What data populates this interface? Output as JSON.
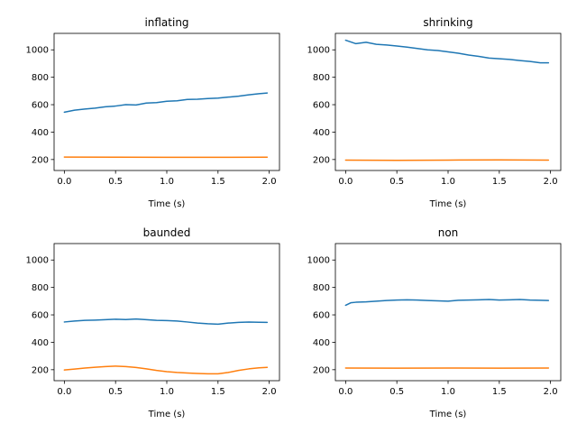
{
  "chart_data": [
    {
      "type": "line",
      "title": "inflating",
      "xlabel": "Time (s)",
      "ylabel": "",
      "xlim": [
        -0.1,
        2.1
      ],
      "ylim": [
        120,
        1120
      ],
      "xticks": [
        0.0,
        0.5,
        1.0,
        1.5,
        2.0
      ],
      "xtick_labels": [
        "0.0",
        "0.5",
        "1.0",
        "1.5",
        "2.0"
      ],
      "yticks": [
        200,
        400,
        600,
        800,
        1000
      ],
      "ytick_labels": [
        "200",
        "400",
        "600",
        "800",
        "1000"
      ],
      "grid": false,
      "series": [
        {
          "color": "#1f77b4",
          "x": [
            0.0,
            0.1,
            0.2,
            0.3,
            0.4,
            0.5,
            0.6,
            0.7,
            0.8,
            0.9,
            1.0,
            1.1,
            1.2,
            1.3,
            1.4,
            1.5,
            1.6,
            1.7,
            1.8,
            1.9,
            1.98
          ],
          "y": [
            545,
            560,
            568,
            575,
            585,
            590,
            600,
            598,
            612,
            615,
            625,
            628,
            638,
            640,
            645,
            648,
            655,
            662,
            672,
            680,
            685
          ]
        },
        {
          "color": "#ff7f0e",
          "x": [
            0.0,
            0.5,
            1.0,
            1.5,
            1.98
          ],
          "y": [
            218,
            217,
            216,
            216,
            217
          ]
        }
      ]
    },
    {
      "type": "line",
      "title": "shrinking",
      "xlabel": "Time (s)",
      "ylabel": "",
      "xlim": [
        -0.1,
        2.1
      ],
      "ylim": [
        120,
        1120
      ],
      "xticks": [
        0.0,
        0.5,
        1.0,
        1.5,
        2.0
      ],
      "xtick_labels": [
        "0.0",
        "0.5",
        "1.0",
        "1.5",
        "2.0"
      ],
      "yticks": [
        200,
        400,
        600,
        800,
        1000
      ],
      "ytick_labels": [
        "200",
        "400",
        "600",
        "800",
        "1000"
      ],
      "grid": false,
      "series": [
        {
          "color": "#1f77b4",
          "x": [
            0.0,
            0.1,
            0.2,
            0.3,
            0.4,
            0.5,
            0.6,
            0.7,
            0.8,
            0.9,
            1.0,
            1.1,
            1.2,
            1.3,
            1.4,
            1.5,
            1.6,
            1.7,
            1.8,
            1.9,
            1.98
          ],
          "y": [
            1070,
            1045,
            1055,
            1040,
            1035,
            1028,
            1020,
            1010,
            1000,
            995,
            985,
            975,
            962,
            952,
            940,
            935,
            930,
            922,
            915,
            905,
            905
          ]
        },
        {
          "color": "#ff7f0e",
          "x": [
            0.0,
            0.5,
            1.0,
            1.5,
            1.98
          ],
          "y": [
            196,
            194,
            196,
            197,
            196
          ]
        }
      ]
    },
    {
      "type": "line",
      "title": "baunded",
      "xlabel": "Time (s)",
      "ylabel": "",
      "xlim": [
        -0.1,
        2.1
      ],
      "ylim": [
        120,
        1120
      ],
      "xticks": [
        0.0,
        0.5,
        1.0,
        1.5,
        2.0
      ],
      "xtick_labels": [
        "0.0",
        "0.5",
        "1.0",
        "1.5",
        "2.0"
      ],
      "yticks": [
        200,
        400,
        600,
        800,
        1000
      ],
      "ytick_labels": [
        "200",
        "400",
        "600",
        "800",
        "1000"
      ],
      "grid": false,
      "series": [
        {
          "color": "#1f77b4",
          "x": [
            0.0,
            0.1,
            0.2,
            0.3,
            0.4,
            0.5,
            0.6,
            0.7,
            0.8,
            0.9,
            1.0,
            1.1,
            1.2,
            1.3,
            1.4,
            1.5,
            1.6,
            1.7,
            1.8,
            1.9,
            1.98
          ],
          "y": [
            548,
            555,
            560,
            562,
            565,
            568,
            566,
            570,
            565,
            560,
            558,
            555,
            548,
            540,
            535,
            532,
            540,
            545,
            548,
            546,
            545
          ]
        },
        {
          "color": "#ff7f0e",
          "x": [
            0.0,
            0.1,
            0.2,
            0.3,
            0.4,
            0.5,
            0.6,
            0.7,
            0.8,
            0.9,
            1.0,
            1.1,
            1.2,
            1.3,
            1.4,
            1.5,
            1.6,
            1.7,
            1.8,
            1.9,
            1.98
          ],
          "y": [
            198,
            205,
            212,
            218,
            223,
            226,
            223,
            216,
            206,
            195,
            186,
            180,
            176,
            173,
            170,
            170,
            180,
            195,
            206,
            214,
            217
          ]
        }
      ]
    },
    {
      "type": "line",
      "title": "non",
      "xlabel": "Time (s)",
      "ylabel": "",
      "xlim": [
        -0.1,
        2.1
      ],
      "ylim": [
        120,
        1120
      ],
      "xticks": [
        0.0,
        0.5,
        1.0,
        1.5,
        2.0
      ],
      "xtick_labels": [
        "0.0",
        "0.5",
        "1.0",
        "1.5",
        "2.0"
      ],
      "yticks": [
        200,
        400,
        600,
        800,
        1000
      ],
      "ytick_labels": [
        "200",
        "400",
        "600",
        "800",
        "1000"
      ],
      "grid": false,
      "series": [
        {
          "color": "#1f77b4",
          "x": [
            0.0,
            0.05,
            0.1,
            0.2,
            0.3,
            0.4,
            0.5,
            0.6,
            0.7,
            0.8,
            0.9,
            1.0,
            1.1,
            1.2,
            1.3,
            1.4,
            1.5,
            1.6,
            1.7,
            1.8,
            1.9,
            1.98
          ],
          "y": [
            670,
            688,
            692,
            695,
            700,
            705,
            708,
            710,
            708,
            705,
            702,
            700,
            706,
            708,
            710,
            712,
            708,
            710,
            712,
            708,
            706,
            705
          ]
        },
        {
          "color": "#ff7f0e",
          "x": [
            0.0,
            0.5,
            1.0,
            1.5,
            1.98
          ],
          "y": [
            212,
            211,
            212,
            211,
            212
          ]
        }
      ]
    }
  ]
}
